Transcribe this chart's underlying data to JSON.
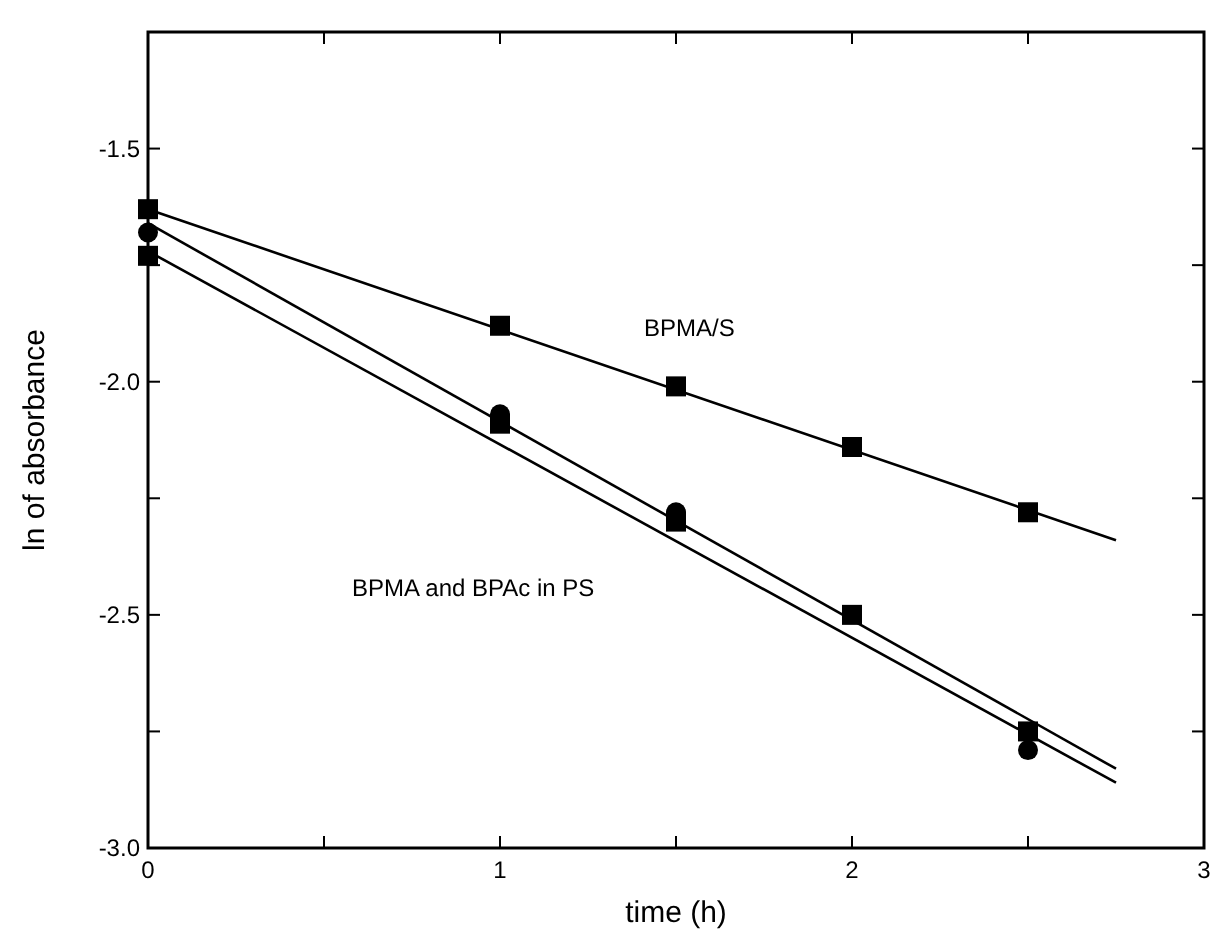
{
  "chart_data": {
    "type": "scatter",
    "xlabel": "time (h)",
    "ylabel": "ln of absorbance",
    "xlim": [
      0,
      3
    ],
    "ylim": [
      -3.0,
      -1.25
    ],
    "xticks": [
      0,
      {
        "value": 0.5,
        "label": null
      },
      1,
      {
        "value": 1.5,
        "label": null
      },
      2,
      {
        "value": 2.5,
        "label": null
      },
      3
    ],
    "yticks": [
      {
        "value": -3.0,
        "label": "-3.0"
      },
      {
        "value": -2.75,
        "label": null
      },
      -2.5,
      {
        "value": -2.25,
        "label": null
      },
      {
        "value": -2.0,
        "label": "-2.0"
      },
      {
        "value": -1.75,
        "label": null
      },
      -1.5
    ],
    "grid": false,
    "series": [
      {
        "marker": "square",
        "color": "#000000",
        "x": [
          0,
          1,
          1.5,
          2,
          2.5
        ],
        "values": [
          -1.63,
          -1.88,
          -2.01,
          -2.14,
          -2.28
        ]
      },
      {
        "marker": "circle",
        "color": "#000000",
        "x": [
          0,
          1,
          1.5,
          2,
          2.5
        ],
        "values": [
          -1.68,
          -2.07,
          -2.28,
          null,
          -2.79
        ]
      },
      {
        "marker": "square",
        "color": "#000000",
        "x": [
          0,
          1,
          1.5,
          2,
          2.5
        ],
        "values": [
          -1.73,
          -2.09,
          -2.3,
          -2.5,
          -2.75
        ]
      },
      {
        "type": "line",
        "marker": "none",
        "line_style": "solid",
        "color": "#000000",
        "x": [
          0,
          2.75
        ],
        "values": [
          -1.63,
          -2.34
        ]
      },
      {
        "type": "line",
        "marker": "none",
        "line_style": "solid",
        "color": "#000000",
        "x": [
          0,
          2.75
        ],
        "values": [
          -1.66,
          -2.83
        ]
      },
      {
        "type": "line",
        "marker": "none",
        "line_style": "solid",
        "color": "#000000",
        "x": [
          0,
          2.75
        ],
        "values": [
          -1.72,
          -2.86
        ]
      }
    ],
    "annotations": [
      "BPMA/S",
      "BPMA and BPAc in PS"
    ]
  }
}
